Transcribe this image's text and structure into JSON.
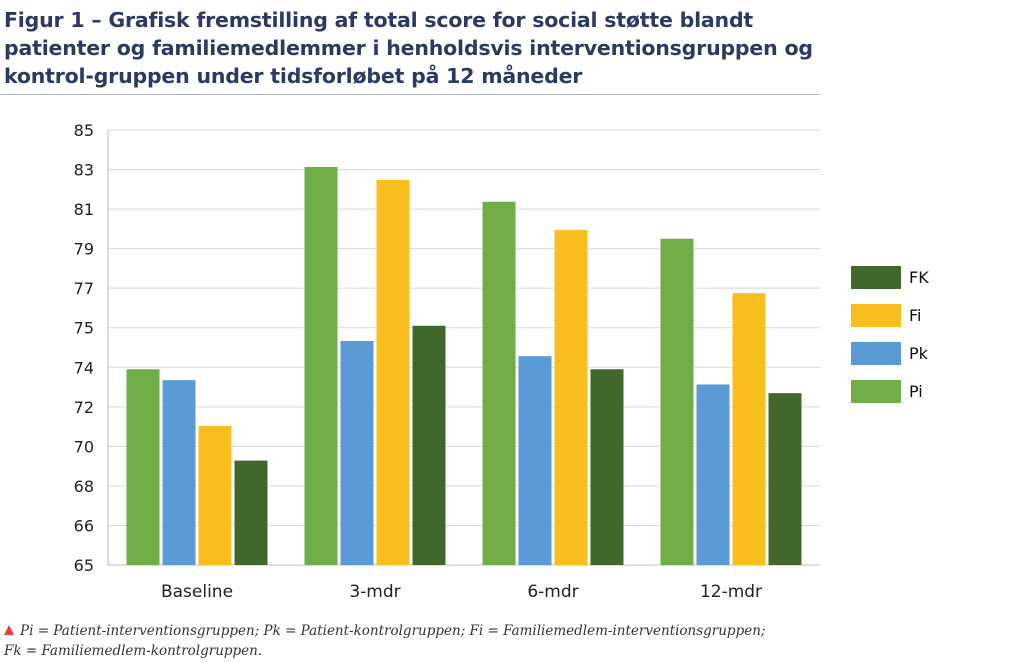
{
  "title": "Figur 1 – Grafisk fremstilling af total score for social støtte blandt patienter og familiemedlemmer i henholdsvis interventionsgruppen og kontrol-gruppen under tidsforløbet på 12 måneder",
  "footnote": {
    "marker_icon": "triangle-marker-icon",
    "line1": "Pi = Patient-interventionsgruppen; Pk = Patient-kontrolgruppen; Fi = Familiemedlem-interventionsgruppen;",
    "line2": "Fk = Familiemedlem-kontrolgruppen."
  },
  "legend": [
    {
      "label": "FK",
      "color": "#41672c"
    },
    {
      "label": "Fi",
      "color": "#f9bf1f"
    },
    {
      "label": "Pk",
      "color": "#5b9bd5"
    },
    {
      "label": "Pi",
      "color": "#70ad47"
    }
  ],
  "chart_data": {
    "type": "bar",
    "categories": [
      "Baseline",
      "3-mdr",
      "6-mdr",
      "12-mdr"
    ],
    "ylim": [
      65,
      85
    ],
    "yticks": [
      "65",
      "66",
      "68",
      "70",
      "72",
      "74",
      "75",
      "77",
      "79",
      "81",
      "83",
      "85"
    ],
    "grid": true,
    "legend_position": "right",
    "series": [
      {
        "name": "Pi",
        "color": "#70ad47",
        "values": [
          74.0,
          83.3,
          81.7,
          80.0
        ]
      },
      {
        "name": "Pk",
        "color": "#5b9bd5",
        "values": [
          73.5,
          75.3,
          74.6,
          73.3
        ]
      },
      {
        "name": "Fi",
        "color": "#f9bf1f",
        "values": [
          71.4,
          82.7,
          80.4,
          77.5
        ]
      },
      {
        "name": "FK",
        "color": "#41672c",
        "values": [
          69.8,
          76.0,
          74.0,
          72.9
        ]
      }
    ]
  }
}
